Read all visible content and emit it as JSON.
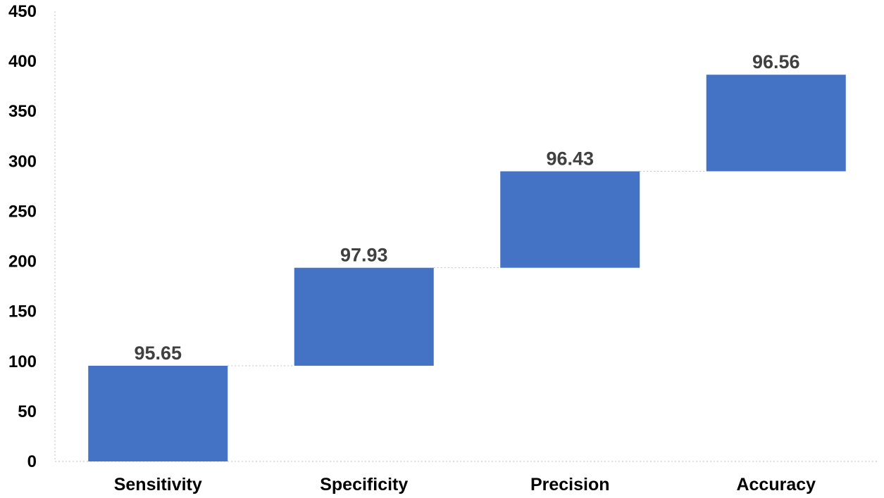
{
  "chart_data": {
    "type": "bar",
    "subtype": "waterfall",
    "categories": [
      "Sensitivity",
      "Specificity",
      "Precision",
      "Accuracy"
    ],
    "values": [
      95.65,
      97.93,
      96.43,
      96.56
    ],
    "data_labels": [
      "95.65",
      "97.93",
      "96.43",
      "96.56"
    ],
    "ylim": [
      0,
      450
    ],
    "yticks": [
      0,
      50,
      100,
      150,
      200,
      250,
      300,
      350,
      400,
      450
    ],
    "title": "",
    "xlabel": "",
    "ylabel": "",
    "grid": false,
    "legend": "none",
    "connector_lines": true,
    "bar_color": "#4472C4",
    "label_color": "#404040",
    "axis_color": "#BFBFBF"
  }
}
